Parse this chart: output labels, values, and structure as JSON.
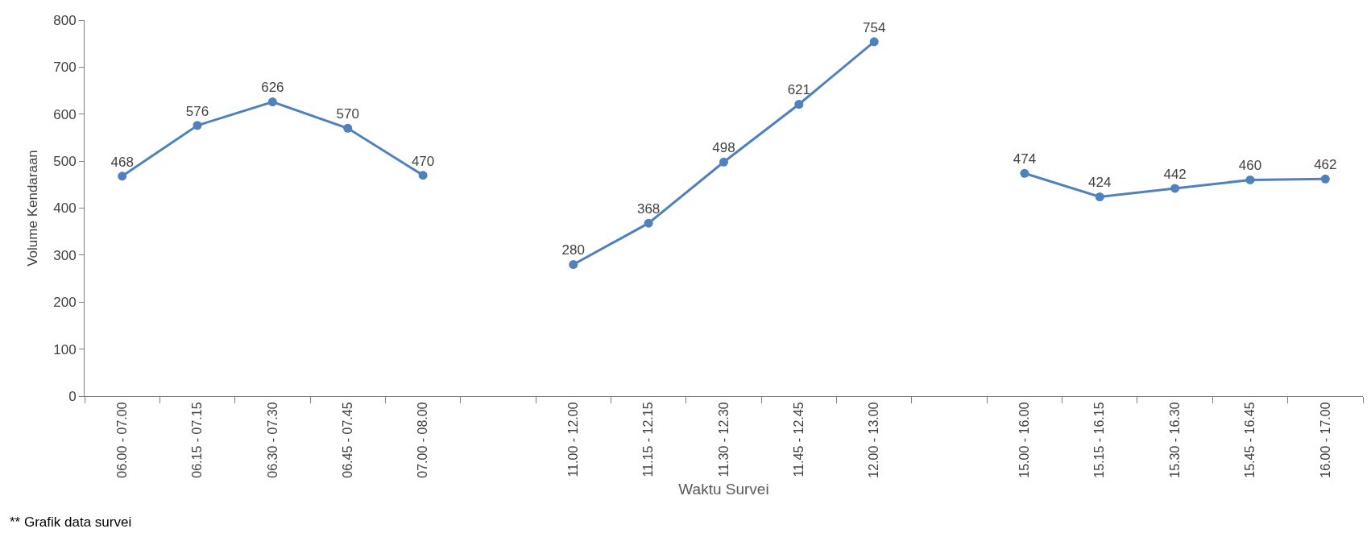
{
  "chart_data": {
    "type": "line",
    "xlabel": "Waktu Survei",
    "ylabel": "Volume Kendaraan",
    "categories": [
      "06.00 - 07.00",
      "06.15 - 07.15",
      "06.30 - 07.30",
      "06.45 - 07.45",
      "07.00 - 08.00",
      null,
      "11.00 - 12.00",
      "11.15 - 12.15",
      "11.30 - 12.30",
      "11.45 - 12.45",
      "12.00 - 13.00",
      null,
      "15.00 - 16.00",
      "15.15 - 16.15",
      "15.30 - 16.30",
      "15.45 - 16.45",
      "16.00 - 17.00"
    ],
    "series": [
      {
        "color": "#4f81bd",
        "values": [
          468,
          576,
          626,
          570,
          470,
          null,
          280,
          368,
          498,
          621,
          754,
          null,
          474,
          424,
          442,
          460,
          462
        ]
      }
    ],
    "ylim": [
      0,
      800
    ],
    "yticks": [
      0,
      100,
      200,
      300,
      400,
      500,
      600,
      700,
      800
    ],
    "data_labels": true,
    "marker": "circle",
    "line_style": "solid",
    "annotations": [
      "** Grafik data survei"
    ]
  }
}
